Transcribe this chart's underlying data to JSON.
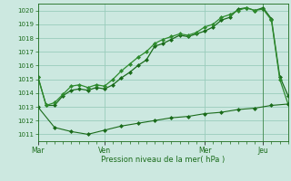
{
  "background_color": "#cce8e0",
  "grid_color": "#99ccbb",
  "line_color_dark": "#1a6b1a",
  "line_color_light": "#2e8b2e",
  "xlabel": "Pression niveau de la mer( hPa )",
  "ylim": [
    1010.5,
    1020.5
  ],
  "yticks": [
    1011,
    1012,
    1013,
    1014,
    1015,
    1016,
    1017,
    1018,
    1019,
    1020
  ],
  "xtick_labels": [
    "Mar",
    "Ven",
    "Mer",
    "Jeu"
  ],
  "xtick_positions": [
    0,
    8,
    20,
    27
  ],
  "vline_position": 27,
  "series1_x": [
    0,
    1,
    2,
    3,
    4,
    5,
    6,
    7,
    8,
    9,
    10,
    11,
    12,
    13,
    14,
    15,
    16,
    17,
    18,
    19,
    20,
    21,
    22,
    23,
    24,
    25,
    26,
    27,
    28,
    29,
    30
  ],
  "series1_y": [
    1015.2,
    1013.1,
    1013.1,
    1013.8,
    1014.2,
    1014.3,
    1014.2,
    1014.4,
    1014.3,
    1014.6,
    1015.1,
    1015.5,
    1016.0,
    1016.4,
    1017.4,
    1017.6,
    1017.9,
    1018.2,
    1018.1,
    1018.3,
    1018.5,
    1018.8,
    1019.3,
    1019.5,
    1020.1,
    1020.2,
    1020.0,
    1020.2,
    1019.4,
    1015.2,
    1013.8
  ],
  "series2_x": [
    0,
    1,
    2,
    3,
    4,
    5,
    6,
    7,
    8,
    9,
    10,
    11,
    12,
    13,
    14,
    15,
    16,
    17,
    18,
    19,
    20,
    21,
    22,
    23,
    24,
    25,
    26,
    27,
    28,
    29,
    30
  ],
  "series2_y": [
    1015.2,
    1013.1,
    1013.3,
    1013.9,
    1014.5,
    1014.6,
    1014.4,
    1014.6,
    1014.5,
    1015.0,
    1015.6,
    1016.1,
    1016.6,
    1017.0,
    1017.6,
    1017.9,
    1018.1,
    1018.3,
    1018.2,
    1018.4,
    1018.8,
    1019.0,
    1019.5,
    1019.7,
    1020.0,
    1020.2,
    1020.0,
    1020.1,
    1019.3,
    1015.0,
    1013.2
  ],
  "series3_x": [
    0,
    2,
    4,
    6,
    8,
    10,
    12,
    14,
    16,
    18,
    20,
    22,
    24,
    26,
    28,
    30
  ],
  "series3_y": [
    1013.0,
    1011.5,
    1011.2,
    1011.0,
    1011.3,
    1011.6,
    1011.8,
    1012.0,
    1012.2,
    1012.3,
    1012.5,
    1012.6,
    1012.8,
    1012.9,
    1013.1,
    1013.2
  ],
  "xlim": [
    0,
    30
  ]
}
